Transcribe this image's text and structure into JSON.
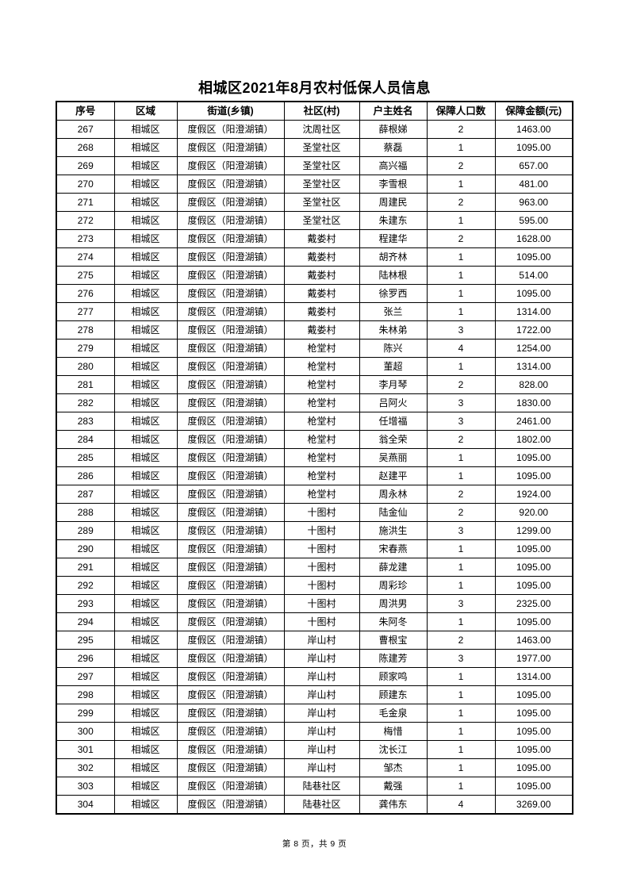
{
  "page": {
    "title": "相城区2021年8月农村低保人员信息",
    "footer": "第 8 页，共 9 页"
  },
  "colors": {
    "text": "#000000",
    "border": "#000000",
    "background": "#ffffff"
  },
  "table": {
    "headers": [
      "序号",
      "区域",
      "街道(乡镇)",
      "社区(村)",
      "户主姓名",
      "保障人口数",
      "保障金额(元)"
    ],
    "rows": [
      [
        "267",
        "相城区",
        "度假区（阳澄湖镇）",
        "沈周社区",
        "薛根娣",
        "2",
        "1463.00"
      ],
      [
        "268",
        "相城区",
        "度假区（阳澄湖镇）",
        "圣堂社区",
        "蔡磊",
        "1",
        "1095.00"
      ],
      [
        "269",
        "相城区",
        "度假区（阳澄湖镇）",
        "圣堂社区",
        "高兴福",
        "2",
        "657.00"
      ],
      [
        "270",
        "相城区",
        "度假区（阳澄湖镇）",
        "圣堂社区",
        "李雪根",
        "1",
        "481.00"
      ],
      [
        "271",
        "相城区",
        "度假区（阳澄湖镇）",
        "圣堂社区",
        "周建民",
        "2",
        "963.00"
      ],
      [
        "272",
        "相城区",
        "度假区（阳澄湖镇）",
        "圣堂社区",
        "朱建东",
        "1",
        "595.00"
      ],
      [
        "273",
        "相城区",
        "度假区（阳澄湖镇）",
        "戴娄村",
        "程建华",
        "2",
        "1628.00"
      ],
      [
        "274",
        "相城区",
        "度假区（阳澄湖镇）",
        "戴娄村",
        "胡齐林",
        "1",
        "1095.00"
      ],
      [
        "275",
        "相城区",
        "度假区（阳澄湖镇）",
        "戴娄村",
        "陆林根",
        "1",
        "514.00"
      ],
      [
        "276",
        "相城区",
        "度假区（阳澄湖镇）",
        "戴娄村",
        "徐罗西",
        "1",
        "1095.00"
      ],
      [
        "277",
        "相城区",
        "度假区（阳澄湖镇）",
        "戴娄村",
        "张兰",
        "1",
        "1314.00"
      ],
      [
        "278",
        "相城区",
        "度假区（阳澄湖镇）",
        "戴娄村",
        "朱林弟",
        "3",
        "1722.00"
      ],
      [
        "279",
        "相城区",
        "度假区（阳澄湖镇）",
        "枪堂村",
        "陈兴",
        "4",
        "1254.00"
      ],
      [
        "280",
        "相城区",
        "度假区（阳澄湖镇）",
        "枪堂村",
        "董超",
        "1",
        "1314.00"
      ],
      [
        "281",
        "相城区",
        "度假区（阳澄湖镇）",
        "枪堂村",
        "李月琴",
        "2",
        "828.00"
      ],
      [
        "282",
        "相城区",
        "度假区（阳澄湖镇）",
        "枪堂村",
        "吕阿火",
        "3",
        "1830.00"
      ],
      [
        "283",
        "相城区",
        "度假区（阳澄湖镇）",
        "枪堂村",
        "任增福",
        "3",
        "2461.00"
      ],
      [
        "284",
        "相城区",
        "度假区（阳澄湖镇）",
        "枪堂村",
        "翁全荣",
        "2",
        "1802.00"
      ],
      [
        "285",
        "相城区",
        "度假区（阳澄湖镇）",
        "枪堂村",
        "吴燕丽",
        "1",
        "1095.00"
      ],
      [
        "286",
        "相城区",
        "度假区（阳澄湖镇）",
        "枪堂村",
        "赵建平",
        "1",
        "1095.00"
      ],
      [
        "287",
        "相城区",
        "度假区（阳澄湖镇）",
        "枪堂村",
        "周永林",
        "2",
        "1924.00"
      ],
      [
        "288",
        "相城区",
        "度假区（阳澄湖镇）",
        "十图村",
        "陆金仙",
        "2",
        "920.00"
      ],
      [
        "289",
        "相城区",
        "度假区（阳澄湖镇）",
        "十图村",
        "施洪生",
        "3",
        "1299.00"
      ],
      [
        "290",
        "相城区",
        "度假区（阳澄湖镇）",
        "十图村",
        "宋春燕",
        "1",
        "1095.00"
      ],
      [
        "291",
        "相城区",
        "度假区（阳澄湖镇）",
        "十图村",
        "薛龙建",
        "1",
        "1095.00"
      ],
      [
        "292",
        "相城区",
        "度假区（阳澄湖镇）",
        "十图村",
        "周彩珍",
        "1",
        "1095.00"
      ],
      [
        "293",
        "相城区",
        "度假区（阳澄湖镇）",
        "十图村",
        "周洪男",
        "3",
        "2325.00"
      ],
      [
        "294",
        "相城区",
        "度假区（阳澄湖镇）",
        "十图村",
        "朱阿冬",
        "1",
        "1095.00"
      ],
      [
        "295",
        "相城区",
        "度假区（阳澄湖镇）",
        "岸山村",
        "曹根宝",
        "2",
        "1463.00"
      ],
      [
        "296",
        "相城区",
        "度假区（阳澄湖镇）",
        "岸山村",
        "陈建芳",
        "3",
        "1977.00"
      ],
      [
        "297",
        "相城区",
        "度假区（阳澄湖镇）",
        "岸山村",
        "顾家鸣",
        "1",
        "1314.00"
      ],
      [
        "298",
        "相城区",
        "度假区（阳澄湖镇）",
        "岸山村",
        "顾建东",
        "1",
        "1095.00"
      ],
      [
        "299",
        "相城区",
        "度假区（阳澄湖镇）",
        "岸山村",
        "毛金泉",
        "1",
        "1095.00"
      ],
      [
        "300",
        "相城区",
        "度假区（阳澄湖镇）",
        "岸山村",
        "梅惜",
        "1",
        "1095.00"
      ],
      [
        "301",
        "相城区",
        "度假区（阳澄湖镇）",
        "岸山村",
        "沈长江",
        "1",
        "1095.00"
      ],
      [
        "302",
        "相城区",
        "度假区（阳澄湖镇）",
        "岸山村",
        "邹杰",
        "1",
        "1095.00"
      ],
      [
        "303",
        "相城区",
        "度假区（阳澄湖镇）",
        "陆巷社区",
        "戴强",
        "1",
        "1095.00"
      ],
      [
        "304",
        "相城区",
        "度假区（阳澄湖镇）",
        "陆巷社区",
        "龚伟东",
        "4",
        "3269.00"
      ]
    ]
  }
}
